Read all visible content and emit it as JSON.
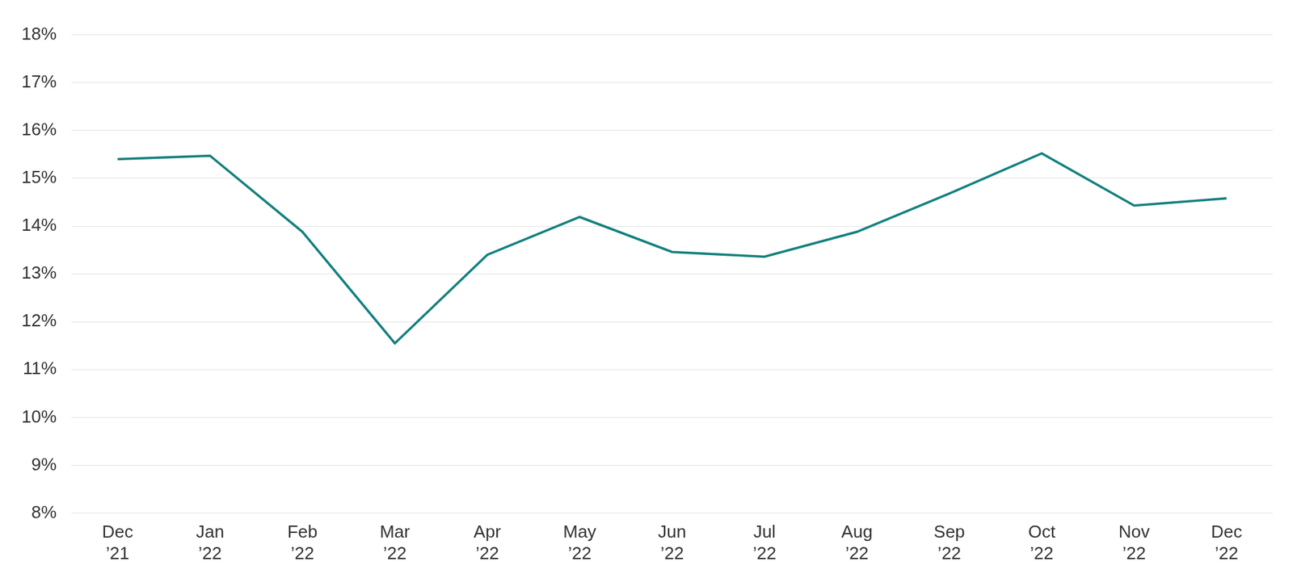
{
  "chart_data": {
    "type": "line",
    "categories": [
      "Dec ’21",
      "Jan ’22",
      "Feb ’22",
      "Mar ’22",
      "Apr ’22",
      "May ’22",
      "Jun ’22",
      "Jul ’22",
      "Aug ’22",
      "Sep ’22",
      "Oct ’22",
      "Nov ’22",
      "Dec ’22"
    ],
    "values": [
      15.4,
      15.47,
      13.88,
      11.55,
      13.4,
      14.19,
      13.46,
      13.36,
      13.88,
      14.68,
      15.52,
      14.43,
      14.58
    ],
    "color": "#13807e",
    "ylim": [
      8,
      18
    ],
    "yticks": [
      {
        "value": 8,
        "label": "8%"
      },
      {
        "value": 9,
        "label": "9%"
      },
      {
        "value": 10,
        "label": "10%"
      },
      {
        "value": 11,
        "label": "11%"
      },
      {
        "value": 12,
        "label": "12%"
      },
      {
        "value": 13,
        "label": "13%"
      },
      {
        "value": 14,
        "label": "14%"
      },
      {
        "value": 15,
        "label": "15%"
      },
      {
        "value": 16,
        "label": "16%"
      },
      {
        "value": 17,
        "label": "17%"
      },
      {
        "value": 18,
        "label": "18%"
      }
    ],
    "grid": true
  }
}
